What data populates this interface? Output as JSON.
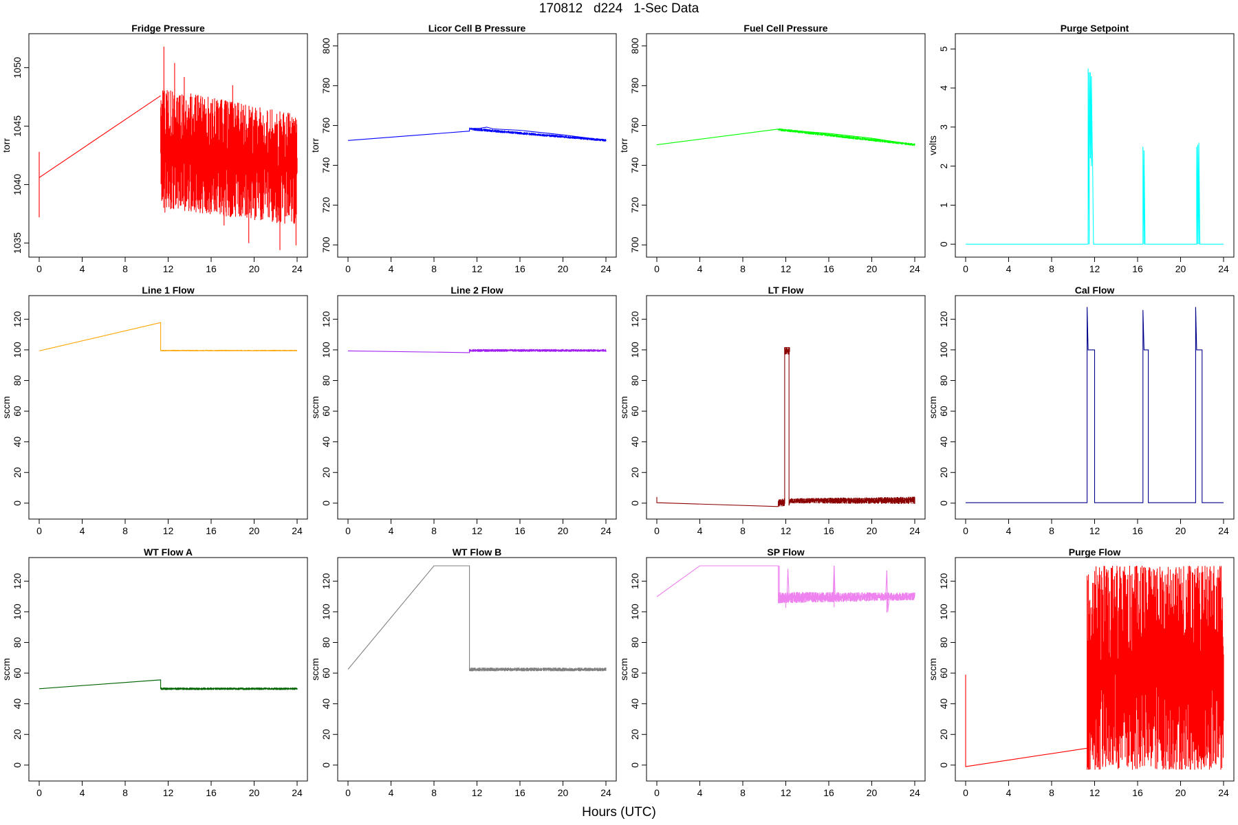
{
  "figure": {
    "title": "170812   d224   1-Sec Data",
    "xlabel": "Hours (UTC)"
  },
  "chart_data": [
    {
      "type": "line",
      "title": "Fridge Pressure",
      "ylabel": "torr",
      "color": "#ff0000",
      "xlim": [
        0,
        24
      ],
      "xticks": [
        0,
        4,
        8,
        12,
        16,
        20,
        24
      ],
      "ylim": [
        1034.5,
        1052.2
      ],
      "yticks": [
        1035,
        1040,
        1045,
        1050
      ],
      "points": [
        [
          0,
          1037.2
        ],
        [
          0,
          1042.8
        ],
        [
          0,
          1040.6
        ],
        [
          11.3,
          1047.6
        ]
      ],
      "noise": [
        {
          "x0": 11.3,
          "x1": 24,
          "lower": [
            1038.0,
            1036.5
          ],
          "upper": [
            1048.3,
            1046.0
          ],
          "mid": [
            1043.2,
            1041.2
          ],
          "peaks": [
            [
              11.6,
              1051.8
            ],
            [
              12.6,
              1050.4
            ],
            [
              13.5,
              1049.2
            ],
            [
              18.0,
              1048.5
            ]
          ],
          "troughs": [
            [
              11.7,
              1037.6
            ],
            [
              17.2,
              1036.5
            ],
            [
              19.5,
              1035.0
            ],
            [
              22.4,
              1034.4
            ],
            [
              23.9,
              1034.8
            ]
          ]
        }
      ]
    },
    {
      "type": "line",
      "title": "Licor Cell B Pressure",
      "ylabel": "torr",
      "color": "#0000ff",
      "xlim": [
        0,
        24
      ],
      "xticks": [
        0,
        4,
        8,
        12,
        16,
        20,
        24
      ],
      "ylim": [
        698,
        802
      ],
      "yticks": [
        700,
        720,
        740,
        760,
        780,
        800
      ],
      "points": [
        [
          0,
          752.5
        ],
        [
          11.3,
          757.2
        ],
        [
          11.3,
          758.4
        ],
        [
          12.3,
          758.6
        ],
        [
          12.9,
          759.2
        ],
        [
          13.5,
          758.3
        ],
        [
          16,
          757.6
        ],
        [
          20,
          755.3
        ],
        [
          24,
          752.6
        ]
      ],
      "noise": [
        {
          "x0": 11.3,
          "x1": 24,
          "lower": [
            757.6,
            751.9
          ],
          "upper": [
            759.0,
            753.2
          ],
          "mid": [
            758.3,
            752.6
          ]
        }
      ]
    },
    {
      "type": "line",
      "title": "Fuel Cell Pressure",
      "ylabel": "torr",
      "color": "#00ff00",
      "xlim": [
        0,
        24
      ],
      "xticks": [
        0,
        4,
        8,
        12,
        16,
        20,
        24
      ],
      "ylim": [
        698,
        802
      ],
      "yticks": [
        700,
        720,
        740,
        760,
        780,
        800
      ],
      "points": [
        [
          0,
          750.3
        ],
        [
          11.3,
          758.2
        ],
        [
          11.3,
          758.0
        ],
        [
          16,
          756.0
        ],
        [
          20,
          753.6
        ],
        [
          24,
          750.3
        ]
      ],
      "noise": [
        {
          "x0": 11.3,
          "x1": 24,
          "lower": [
            757.3,
            749.7
          ],
          "upper": [
            758.7,
            751.0
          ],
          "mid": [
            758.0,
            750.3
          ]
        }
      ]
    },
    {
      "type": "line",
      "title": "Purge Setpoint",
      "ylabel": "volts",
      "color": "#00ffff",
      "xlim": [
        0,
        24
      ],
      "xticks": [
        0,
        4,
        8,
        12,
        16,
        20,
        24
      ],
      "ylim": [
        -0.12,
        5.18
      ],
      "yticks": [
        0,
        1,
        2,
        3,
        4,
        5
      ],
      "points": [
        [
          0,
          0
        ],
        [
          11.4,
          0
        ],
        [
          11.4,
          4.5
        ],
        [
          11.5,
          0
        ],
        [
          11.5,
          4.4
        ],
        [
          11.6,
          2.2
        ],
        [
          11.6,
          4.4
        ],
        [
          11.7,
          2.0
        ],
        [
          11.7,
          4.3
        ],
        [
          11.8,
          2.1
        ],
        [
          11.8,
          2.4
        ],
        [
          11.9,
          0
        ],
        [
          16.5,
          0
        ],
        [
          16.5,
          2.5
        ],
        [
          16.6,
          0
        ],
        [
          16.6,
          2.4
        ],
        [
          16.7,
          0
        ],
        [
          21.5,
          0
        ],
        [
          21.5,
          2.5
        ],
        [
          21.6,
          0
        ],
        [
          21.6,
          2.55
        ],
        [
          21.7,
          0
        ],
        [
          21.7,
          2.6
        ],
        [
          21.8,
          0
        ],
        [
          24,
          0
        ]
      ]
    },
    {
      "type": "line",
      "title": "Line 1 Flow",
      "ylabel": "sccm",
      "color": "#ffa500",
      "xlim": [
        0,
        24
      ],
      "xticks": [
        0,
        4,
        8,
        12,
        16,
        20,
        24
      ],
      "ylim": [
        -5,
        130
      ],
      "yticks": [
        0,
        20,
        40,
        60,
        80,
        100,
        120
      ],
      "points": [
        [
          0,
          99.3
        ],
        [
          11.3,
          117.8
        ],
        [
          11.3,
          99.5
        ],
        [
          24,
          99.5
        ]
      ],
      "noise": [
        {
          "x0": 11.3,
          "x1": 24,
          "lower": [
            99.1,
            99.1
          ],
          "upper": [
            100.0,
            100.0
          ],
          "mid": [
            99.5,
            99.5
          ]
        }
      ]
    },
    {
      "type": "line",
      "title": "Line 2 Flow",
      "ylabel": "sccm",
      "color": "#a020f0",
      "xlim": [
        0,
        24
      ],
      "xticks": [
        0,
        4,
        8,
        12,
        16,
        20,
        24
      ],
      "ylim": [
        -5,
        130
      ],
      "yticks": [
        0,
        20,
        40,
        60,
        80,
        100,
        120
      ],
      "points": [
        [
          0,
          99.3
        ],
        [
          11.3,
          98.2
        ],
        [
          11.3,
          99.5
        ],
        [
          24,
          99.5
        ]
      ],
      "noise": [
        {
          "x0": 11.3,
          "x1": 24,
          "lower": [
            98.7,
            98.7
          ],
          "upper": [
            100.5,
            100.5
          ],
          "mid": [
            99.5,
            99.5
          ]
        }
      ]
    },
    {
      "type": "line",
      "title": "LT Flow",
      "ylabel": "sccm",
      "color": "#8b0000",
      "xlim": [
        0,
        24
      ],
      "xticks": [
        0,
        4,
        8,
        12,
        16,
        20,
        24
      ],
      "ylim": [
        -5,
        130
      ],
      "yticks": [
        0,
        20,
        40,
        60,
        80,
        100,
        120
      ],
      "points": [
        [
          0,
          4.0
        ],
        [
          0,
          0.3
        ],
        [
          11.3,
          -2.2
        ],
        [
          11.6,
          1.5
        ],
        [
          11.9,
          1.6
        ],
        [
          11.9,
          101.5
        ],
        [
          12.3,
          101.5
        ],
        [
          12.3,
          -1.5
        ],
        [
          12.4,
          2.5
        ],
        [
          24,
          3.0
        ]
      ],
      "noise": [
        {
          "x0": 11.3,
          "x1": 11.9,
          "lower": [
            -2.4,
            -2.0
          ],
          "upper": [
            2.5,
            3.3
          ],
          "mid": [
            0.0,
            0.5
          ]
        },
        {
          "x0": 11.9,
          "x1": 12.35,
          "lower": [
            97.0,
            97.0
          ],
          "upper": [
            102.0,
            102.0
          ],
          "mid": [
            99.5,
            99.5
          ]
        },
        {
          "x0": 12.4,
          "x1": 24,
          "lower": [
            -0.2,
            -0.5
          ],
          "upper": [
            3.2,
            4.2
          ],
          "mid": [
            1.5,
            1.8
          ]
        }
      ]
    },
    {
      "type": "line",
      "title": "Cal Flow",
      "ylabel": "sccm",
      "color": "#00008b",
      "xlim": [
        0,
        24
      ],
      "xticks": [
        0,
        4,
        8,
        12,
        16,
        20,
        24
      ],
      "ylim": [
        -5,
        130
      ],
      "yticks": [
        0,
        20,
        40,
        60,
        80,
        100,
        120
      ],
      "points": [
        [
          0,
          0.3
        ],
        [
          11.3,
          0.3
        ],
        [
          11.3,
          128.0
        ],
        [
          11.4,
          100
        ],
        [
          12.0,
          100
        ],
        [
          12.0,
          0.3
        ],
        [
          16.5,
          0.3
        ],
        [
          16.5,
          126.0
        ],
        [
          16.6,
          100
        ],
        [
          17.0,
          100
        ],
        [
          17.0,
          0.3
        ],
        [
          21.4,
          0.3
        ],
        [
          21.4,
          128.0
        ],
        [
          21.5,
          100
        ],
        [
          22.0,
          100
        ],
        [
          22.0,
          0.3
        ],
        [
          24,
          0.3
        ]
      ]
    },
    {
      "type": "line",
      "title": "WT Flow A",
      "ylabel": "sccm",
      "color": "#006400",
      "xlim": [
        0,
        24
      ],
      "xticks": [
        0,
        4,
        8,
        12,
        16,
        20,
        24
      ],
      "ylim": [
        -5,
        130
      ],
      "yticks": [
        0,
        20,
        40,
        60,
        80,
        100,
        120
      ],
      "points": [
        [
          0,
          49.8
        ],
        [
          11.3,
          55.6
        ],
        [
          11.3,
          49.8
        ],
        [
          24,
          49.8
        ]
      ],
      "noise": [
        {
          "x0": 11.3,
          "x1": 24,
          "lower": [
            49.0,
            49.0
          ],
          "upper": [
            50.6,
            50.6
          ],
          "mid": [
            49.8,
            49.8
          ]
        }
      ]
    },
    {
      "type": "line",
      "title": "WT Flow B",
      "ylabel": "sccm",
      "color": "#808080",
      "xlim": [
        0,
        24
      ],
      "xticks": [
        0,
        4,
        8,
        12,
        16,
        20,
        24
      ],
      "ylim": [
        -5,
        130
      ],
      "yticks": [
        0,
        20,
        40,
        60,
        80,
        100,
        120
      ],
      "points": [
        [
          0,
          62.5
        ],
        [
          8.0,
          130
        ],
        [
          11.3,
          130
        ],
        [
          11.3,
          62.5
        ],
        [
          24,
          62.5
        ]
      ],
      "noise": [
        {
          "x0": 11.3,
          "x1": 24,
          "lower": [
            61.2,
            61.2
          ],
          "upper": [
            63.6,
            63.6
          ],
          "mid": [
            62.4,
            62.4
          ]
        }
      ]
    },
    {
      "type": "line",
      "title": "SP Flow",
      "ylabel": "sccm",
      "color": "#ee82ee",
      "xlim": [
        0,
        24
      ],
      "xticks": [
        0,
        4,
        8,
        12,
        16,
        20,
        24
      ],
      "ylim": [
        -5,
        130
      ],
      "yticks": [
        0,
        20,
        40,
        60,
        80,
        100,
        120
      ],
      "points": [
        [
          0,
          109.8
        ],
        [
          4.0,
          130
        ],
        [
          11.3,
          130
        ],
        [
          11.3,
          110
        ],
        [
          11.5,
          106
        ],
        [
          12.1,
          107
        ],
        [
          12.2,
          128
        ],
        [
          12.3,
          110
        ],
        [
          16.4,
          110
        ],
        [
          16.5,
          130
        ],
        [
          16.6,
          108
        ],
        [
          17.0,
          110
        ],
        [
          21.3,
          110
        ],
        [
          21.4,
          127
        ],
        [
          21.5,
          100
        ],
        [
          21.6,
          108
        ],
        [
          21.9,
          110
        ],
        [
          24,
          110
        ]
      ],
      "noise": [
        {
          "x0": 11.3,
          "x1": 24,
          "lower": [
            105.5,
            107.5
          ],
          "upper": [
            113.0,
            112.5
          ],
          "mid": [
            109.5,
            110.0
          ],
          "peaks": [
            [
              11.4,
              130
            ],
            [
              16.5,
              130
            ]
          ],
          "troughs": [
            [
              12.0,
              102.5
            ],
            [
              16.5,
              103.0
            ],
            [
              21.4,
              99.5
            ]
          ]
        }
      ]
    },
    {
      "type": "line",
      "title": "Purge Flow",
      "ylabel": "sccm",
      "color": "#ff0000",
      "xlim": [
        0,
        24
      ],
      "xticks": [
        0,
        4,
        8,
        12,
        16,
        20,
        24
      ],
      "ylim": [
        -5,
        130
      ],
      "yticks": [
        0,
        20,
        40,
        60,
        80,
        100,
        120
      ],
      "points": [
        [
          0,
          59.0
        ],
        [
          0,
          -1.0
        ],
        [
          11.3,
          11.0
        ],
        [
          11.3,
          -3.0
        ]
      ],
      "noise": [
        {
          "x0": 11.3,
          "x1": 24,
          "lower": [
            -3.0,
            -3.0
          ],
          "upper": [
            130,
            130
          ],
          "mid": [
            64,
            64
          ],
          "troughs": [
            [
              11.3,
              -3.0
            ],
            [
              11.5,
              -3.0
            ]
          ]
        }
      ]
    }
  ]
}
